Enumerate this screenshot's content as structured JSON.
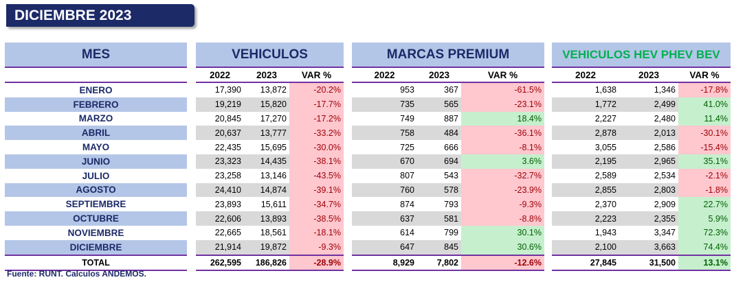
{
  "title": "DICIEMBRE 2023",
  "headers": {
    "mes": "MES",
    "vehiculos": "VEHICULOS",
    "premium": "MARCAS PREMIUM",
    "hev": "VEHICULOS HEV PHEV BEV"
  },
  "subheaders": {
    "y2022": "2022",
    "y2023": "2023",
    "var": "VAR %"
  },
  "months": [
    "ENERO",
    "FEBRERO",
    "MARZO",
    "ABRIL",
    "MAYO",
    "JUNIO",
    "JULIO",
    "AGOSTO",
    "SEPTIEMBRE",
    "OCTUBRE",
    "NOVIEMBRE",
    "DICIEMBRE"
  ],
  "vehiculos": [
    [
      "17,390",
      "13,872",
      "-20.2%"
    ],
    [
      "19,219",
      "15,820",
      "-17.7%"
    ],
    [
      "20,845",
      "17,270",
      "-17.2%"
    ],
    [
      "20,637",
      "13,777",
      "-33.2%"
    ],
    [
      "22,435",
      "15,695",
      "-30.0%"
    ],
    [
      "23,323",
      "14,435",
      "-38.1%"
    ],
    [
      "23,258",
      "13,146",
      "-43.5%"
    ],
    [
      "24,410",
      "14,874",
      "-39.1%"
    ],
    [
      "23,893",
      "15,611",
      "-34.7%"
    ],
    [
      "22,606",
      "13,893",
      "-38.5%"
    ],
    [
      "22,665",
      "18,561",
      "-18.1%"
    ],
    [
      "21,914",
      "19,872",
      "-9.3%"
    ]
  ],
  "premium": [
    [
      "953",
      "367",
      "-61.5%"
    ],
    [
      "735",
      "565",
      "-23.1%"
    ],
    [
      "749",
      "887",
      "18.4%"
    ],
    [
      "758",
      "484",
      "-36.1%"
    ],
    [
      "725",
      "666",
      "-8.1%"
    ],
    [
      "670",
      "694",
      "3.6%"
    ],
    [
      "807",
      "543",
      "-32.7%"
    ],
    [
      "760",
      "578",
      "-23.9%"
    ],
    [
      "874",
      "793",
      "-9.3%"
    ],
    [
      "637",
      "581",
      "-8.8%"
    ],
    [
      "614",
      "799",
      "30.1%"
    ],
    [
      "647",
      "845",
      "30.6%"
    ]
  ],
  "hev": [
    [
      "1,638",
      "1,346",
      "-17.8%"
    ],
    [
      "1,772",
      "2,499",
      "41.0%"
    ],
    [
      "2,227",
      "2,480",
      "11.4%"
    ],
    [
      "2,878",
      "2,013",
      "-30.1%"
    ],
    [
      "3,055",
      "2,586",
      "-15.4%"
    ],
    [
      "2,195",
      "2,965",
      "35.1%"
    ],
    [
      "2,589",
      "2,534",
      "-2.1%"
    ],
    [
      "2,855",
      "2,803",
      "-1.8%"
    ],
    [
      "2,370",
      "2,909",
      "22.7%"
    ],
    [
      "2,223",
      "2,355",
      "5.9%"
    ],
    [
      "1,943",
      "3,347",
      "72.3%"
    ],
    [
      "2,100",
      "3,663",
      "74.4%"
    ]
  ],
  "total": {
    "label": "TOTAL",
    "vehiculos": [
      "262,595",
      "186,826",
      "-28.9%"
    ],
    "premium": [
      "8,929",
      "7,802",
      "-12.6%"
    ],
    "hev": [
      "27,845",
      "31,500",
      "13.1%"
    ]
  },
  "footer": "Fuente: RUNT. Calculos ANDEMOS.",
  "colors": {
    "navy": "#1c2a68",
    "header_bg": "#b4c6e7",
    "neg_bg": "#ffc7ce",
    "pos_bg": "#c6efce",
    "rule": "#7030a0",
    "hev_title": "#00b050"
  }
}
